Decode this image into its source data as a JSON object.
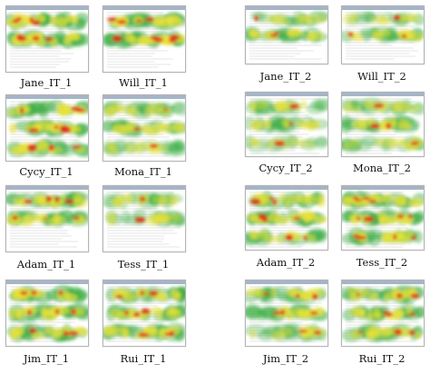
{
  "groups": [
    {
      "iteration": "IT_1",
      "participants": [
        {
          "label": "Jane_IT_1",
          "bands": [
            0.95,
            0.9,
            0.0,
            0.0
          ],
          "hot": 0.55
        },
        {
          "label": "Will_IT_1",
          "bands": [
            0.85,
            0.95,
            0.0,
            0.0
          ],
          "hot": 0.7
        },
        {
          "label": "Cycy_IT_1",
          "bands": [
            0.8,
            0.85,
            0.7,
            0.0
          ],
          "hot": 0.65
        },
        {
          "label": "Mona_IT_1",
          "bands": [
            0.6,
            0.65,
            0.5,
            0.0
          ],
          "hot": 0.2
        },
        {
          "label": "Adam_IT_1",
          "bands": [
            0.8,
            0.75,
            0.0,
            0.0
          ],
          "hot": 0.55
        },
        {
          "label": "Tess_IT_1",
          "bands": [
            0.55,
            0.6,
            0.0,
            0.0
          ],
          "hot": 0.25
        },
        {
          "label": "Jim_IT_1",
          "bands": [
            0.9,
            0.85,
            0.8,
            0.0
          ],
          "hot": 0.45
        },
        {
          "label": "Rui_IT_1",
          "bands": [
            0.8,
            0.75,
            0.8,
            0.0
          ],
          "hot": 0.5
        }
      ]
    },
    {
      "iteration": "IT_2",
      "participants": [
        {
          "label": "Jane_IT_2",
          "bands": [
            0.5,
            0.75,
            0.0,
            0.0
          ],
          "hot": 0.35
        },
        {
          "label": "Will_IT_2",
          "bands": [
            0.45,
            0.7,
            0.0,
            0.0
          ],
          "hot": 0.3
        },
        {
          "label": "Cycy_IT_2",
          "bands": [
            0.55,
            0.6,
            0.4,
            0.0
          ],
          "hot": 0.25
        },
        {
          "label": "Mona_IT_2",
          "bands": [
            0.55,
            0.7,
            0.55,
            0.0
          ],
          "hot": 0.3
        },
        {
          "label": "Adam_IT_2",
          "bands": [
            0.75,
            0.85,
            0.65,
            0.0
          ],
          "hot": 0.5
        },
        {
          "label": "Tess_IT_2",
          "bands": [
            0.85,
            0.85,
            0.8,
            0.0
          ],
          "hot": 0.6
        },
        {
          "label": "Jim_IT_2",
          "bands": [
            0.7,
            0.75,
            0.6,
            0.0
          ],
          "hot": 0.45
        },
        {
          "label": "Rui_IT_2",
          "bands": [
            0.8,
            0.8,
            0.75,
            0.0
          ],
          "hot": 0.5
        }
      ]
    }
  ],
  "colors": {
    "cold": "#3fae45",
    "mid": "#e8e23a",
    "hot": "#e32b1c",
    "page_text": "#b9b9b9",
    "window_chrome": "#a6b4c8"
  }
}
